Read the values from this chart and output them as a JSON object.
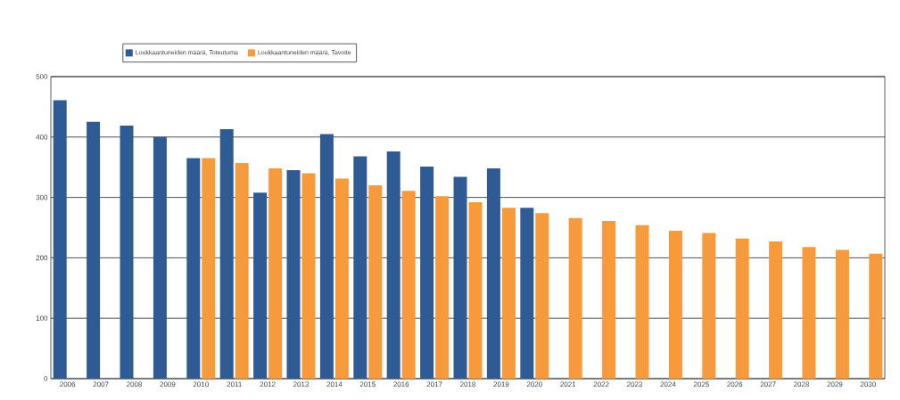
{
  "chart_data": {
    "type": "bar",
    "categories": [
      "2006",
      "2007",
      "2008",
      "2009",
      "2010",
      "2011",
      "2012",
      "2013",
      "2014",
      "2015",
      "2016",
      "2017",
      "2018",
      "2019",
      "2020",
      "2021",
      "2022",
      "2023",
      "2024",
      "2025",
      "2026",
      "2027",
      "2028",
      "2029",
      "2030"
    ],
    "series": [
      {
        "name": "Loukkaantuneiden määrä, Toteutuma",
        "color": "#2f5b94",
        "values": [
          461,
          425,
          419,
          400,
          365,
          413,
          308,
          345,
          405,
          368,
          376,
          351,
          334,
          348,
          283,
          null,
          null,
          null,
          null,
          null,
          null,
          null,
          null,
          null,
          null
        ]
      },
      {
        "name": "Loukkaantuneiden määrä, Tavoite",
        "color": "#f79a3b",
        "values": [
          null,
          null,
          null,
          null,
          365,
          357,
          348,
          340,
          331,
          320,
          311,
          302,
          292,
          283,
          274,
          266,
          261,
          254,
          245,
          241,
          232,
          227,
          218,
          213,
          207
        ]
      }
    ],
    "ylim": [
      0,
      500
    ],
    "yticks": [
      0,
      100,
      200,
      300,
      400,
      500
    ],
    "grid": "y",
    "legend": "top left"
  }
}
